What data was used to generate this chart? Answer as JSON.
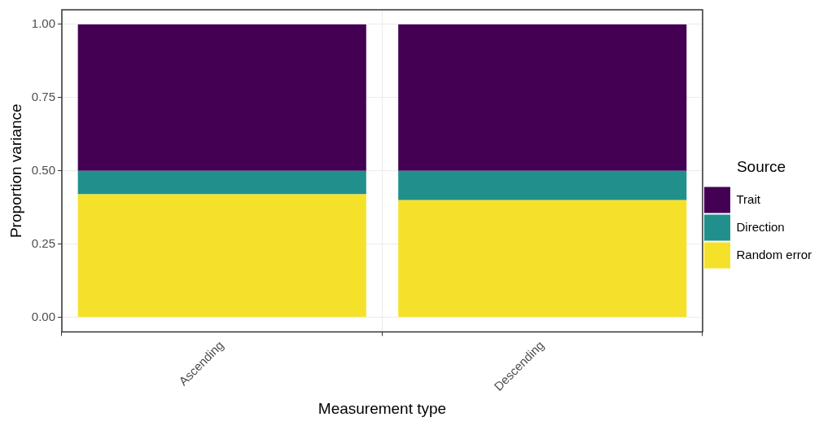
{
  "chart_data": {
    "type": "bar",
    "xlabel": "Measurement type",
    "ylabel": "Proportion variance",
    "legend_title": "Source",
    "categories": [
      "Ascending",
      "Descending"
    ],
    "stacked": true,
    "series": [
      {
        "name": "Random error",
        "color": "#f5e12a",
        "values": [
          0.42,
          0.4
        ]
      },
      {
        "name": "Direction",
        "color": "#21908c",
        "values": [
          0.08,
          0.1
        ]
      },
      {
        "name": "Trait",
        "color": "#440154",
        "values": [
          0.5,
          0.5
        ]
      }
    ],
    "ylim": [
      -0.05,
      1.05
    ],
    "yticks": [
      {
        "value": 0,
        "label": "0.00"
      },
      {
        "value": 0.25,
        "label": "0.25"
      },
      {
        "value": 0.5,
        "label": "0.50"
      },
      {
        "value": 0.75,
        "label": "0.75"
      },
      {
        "value": 1,
        "label": "1.00"
      }
    ],
    "grid": true,
    "legend": "right"
  }
}
